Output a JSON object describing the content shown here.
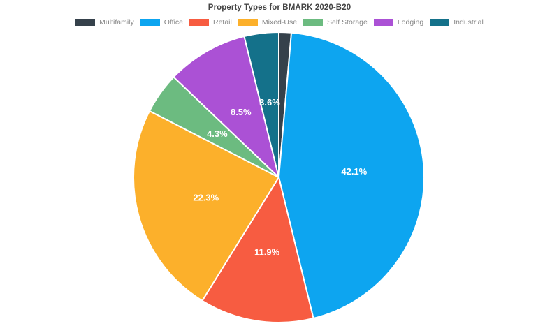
{
  "chart_data": {
    "type": "pie",
    "title": "Property Types for BMARK 2020-B20",
    "labels": [
      "Multifamily",
      "Office",
      "Retail",
      "Mixed-Use",
      "Self Storage",
      "Lodging",
      "Industrial"
    ],
    "values": [
      1.3,
      42.1,
      11.9,
      22.3,
      4.3,
      8.5,
      3.6
    ],
    "slice_text": [
      "",
      "42.1%",
      "11.9%",
      "22.3%",
      "4.3%",
      "8.5%",
      "3.6%"
    ],
    "colors": [
      "#35414b",
      "#0da5f0",
      "#f75c41",
      "#fcb02b",
      "#6cbb80",
      "#ab51d5",
      "#14718a"
    ],
    "background_color": "#ffffff",
    "title_color": "#444444",
    "legend_text_color": "#878787",
    "slice_label_color": "#ffffff",
    "legend_position": "top",
    "start_angle_deg": 0,
    "direction": "clockwise"
  }
}
